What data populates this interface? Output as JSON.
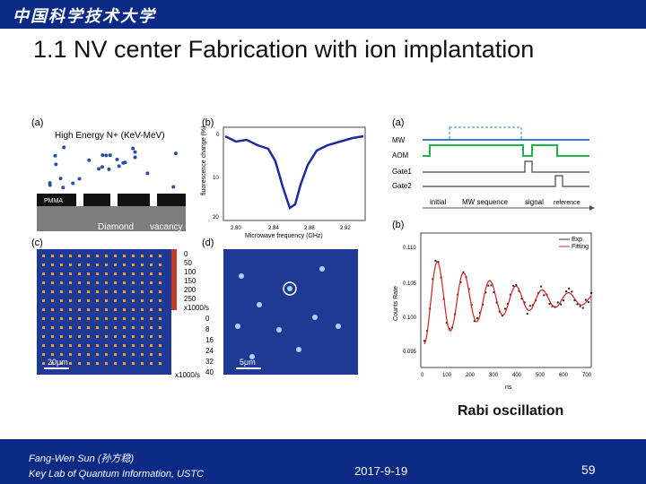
{
  "header": {
    "logo_text": "中国科学技术大学"
  },
  "slide": {
    "title": "1.1 NV center Fabrication with ion implantation"
  },
  "figure_left": {
    "label_a": "(a)",
    "label_b": "(b)",
    "label_c": "(c)",
    "label_d": "(d)",
    "beam_label": "High Energy N+ (KeV-MeV)",
    "pmma_label": "PMMA",
    "diamond_label": "Diamond",
    "vacancy_label": "vacancy",
    "b_ylabel": "fluorescence change (%)",
    "b_xlabel": "Microwave frequency (GHz)",
    "b_xticks": [
      "2.80",
      "2.84",
      "2.88",
      "2.92"
    ],
    "b_yticks": [
      "0",
      "10",
      "20"
    ],
    "c_scalebar": "20μm",
    "d_scalebar": "5μm",
    "c_colorbar_ticks": [
      "0",
      "50",
      "100",
      "150",
      "200",
      "250",
      "x1000/s"
    ],
    "d_colorbar_ticks": [
      "0",
      "8",
      "16",
      "24",
      "32",
      "40"
    ],
    "d_colorbar_unit": "x1000/s"
  },
  "figure_right": {
    "label_a": "(a)",
    "label_b": "(b)",
    "channels": [
      "MW",
      "AOM",
      "Gate1",
      "Gate2"
    ],
    "sequence_labels": [
      "initial",
      "MW sequence",
      "signal",
      "reference"
    ],
    "legend": [
      "Exp.",
      "Fitting"
    ],
    "ylabel": "Counts Rate",
    "xlabel": "ns",
    "yticks": [
      "0.110",
      "0.105",
      "0.100",
      "0.095"
    ],
    "xticks": [
      "0",
      "100",
      "200",
      "300",
      "400",
      "500",
      "600",
      "700"
    ]
  },
  "caption": "Rabi oscillation",
  "footer": {
    "author_line1": "Fang-Wen Sun (孙方稳)",
    "author_line2": "Key Lab of Quantum Information, USTC",
    "date": "2017-9-19",
    "page_number": "59"
  },
  "colors": {
    "brand_blue": "#0a2a86",
    "mw_line": "#3a7bd5",
    "aom_line": "#22b14c",
    "exp_red": "#d42020"
  }
}
